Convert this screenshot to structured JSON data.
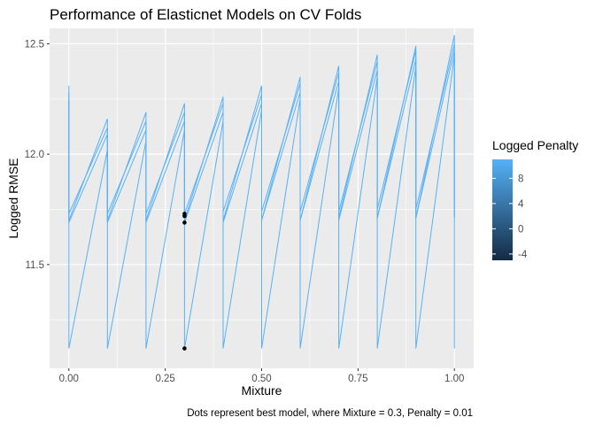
{
  "chart_data": {
    "type": "line",
    "title": "Performance of Elasticnet Models on CV Folds",
    "xlabel": "Mixture",
    "ylabel": "Logged RMSE",
    "caption": "Dots represent best model, where Mixture = 0.3, Penalty = 0.01",
    "xlim": [
      -0.05,
      1.05
    ],
    "ylim": [
      11.03,
      12.57
    ],
    "x_ticks": [
      {
        "value": 0,
        "label": "0.00"
      },
      {
        "value": 0.25,
        "label": "0.25"
      },
      {
        "value": 0.5,
        "label": "0.50"
      },
      {
        "value": 0.75,
        "label": "0.75"
      },
      {
        "value": 1,
        "label": "1.00"
      }
    ],
    "y_ticks": [
      {
        "value": 11.5,
        "label": "11.5"
      },
      {
        "value": 12.0,
        "label": "12.0"
      },
      {
        "value": 12.5,
        "label": "12.5"
      }
    ],
    "grid": true,
    "legend": {
      "title": "Logged Penalty",
      "position": "right",
      "type": "colorbar",
      "range": [
        -5,
        11
      ],
      "ticks": [
        {
          "value": 8,
          "label": "8"
        },
        {
          "value": 4,
          "label": "4"
        },
        {
          "value": 0,
          "label": "0"
        },
        {
          "value": -4,
          "label": "-4"
        }
      ],
      "color_low": "#132b43",
      "color_high": "#56b1f7"
    },
    "line_color": "#56b1f7",
    "series": [
      {
        "x": [
          0,
          0,
          0.1,
          0.1,
          0.2,
          0.2,
          0.3,
          0.3,
          0.4,
          0.4,
          0.5,
          0.5,
          0.6,
          0.6,
          0.7,
          0.7,
          0.8,
          0.8,
          0.9,
          0.9,
          1,
          1
        ],
        "y": [
          12.31,
          11.7,
          12.16,
          11.7,
          12.19,
          11.7,
          12.23,
          11.7,
          12.26,
          11.7,
          12.31,
          11.7,
          12.35,
          11.7,
          12.4,
          11.71,
          12.45,
          11.71,
          12.49,
          11.71,
          12.54,
          11.71
        ]
      },
      {
        "x": [
          0,
          0,
          0.1,
          0.1,
          0.2,
          0.2,
          0.3,
          0.3,
          0.4,
          0.4,
          0.5,
          0.5,
          0.6,
          0.6,
          0.7,
          0.7,
          0.8,
          0.8,
          0.9,
          0.9,
          1,
          1
        ],
        "y": [
          12.28,
          11.73,
          12.12,
          11.73,
          12.15,
          11.73,
          12.19,
          11.73,
          12.23,
          11.74,
          12.27,
          11.74,
          12.32,
          11.74,
          12.37,
          11.74,
          12.42,
          11.75,
          12.47,
          11.75,
          12.5,
          11.76
        ]
      },
      {
        "x": [
          0,
          0,
          0.1,
          0.1,
          0.2,
          0.2,
          0.3,
          0.3,
          0.4,
          0.4,
          0.5,
          0.5,
          0.6,
          0.6,
          0.7,
          0.7,
          0.8,
          0.8,
          0.9,
          0.9,
          1,
          1
        ],
        "y": [
          12.25,
          11.69,
          12.09,
          11.69,
          12.11,
          11.69,
          12.15,
          11.69,
          12.19,
          11.69,
          12.23,
          11.7,
          12.28,
          11.7,
          12.33,
          11.7,
          12.38,
          11.71,
          12.43,
          11.71,
          12.47,
          11.72
        ]
      },
      {
        "x": [
          0,
          0,
          0.1,
          0.1,
          0.2,
          0.2,
          0.3,
          0.3,
          0.4,
          0.4,
          0.5,
          0.5,
          0.6,
          0.6,
          0.7,
          0.7,
          0.8,
          0.8,
          0.9,
          0.9,
          1,
          1
        ],
        "y": [
          12.24,
          11.12,
          12.02,
          11.12,
          12.06,
          11.12,
          12.11,
          11.12,
          12.15,
          11.12,
          12.2,
          11.12,
          12.25,
          11.12,
          12.3,
          11.12,
          12.35,
          11.12,
          12.4,
          11.12,
          12.45,
          11.12
        ]
      }
    ],
    "best_points": {
      "x": [
        0.3,
        0.3,
        0.3,
        0.3
      ],
      "y": [
        11.72,
        11.73,
        11.69,
        11.12
      ]
    }
  }
}
